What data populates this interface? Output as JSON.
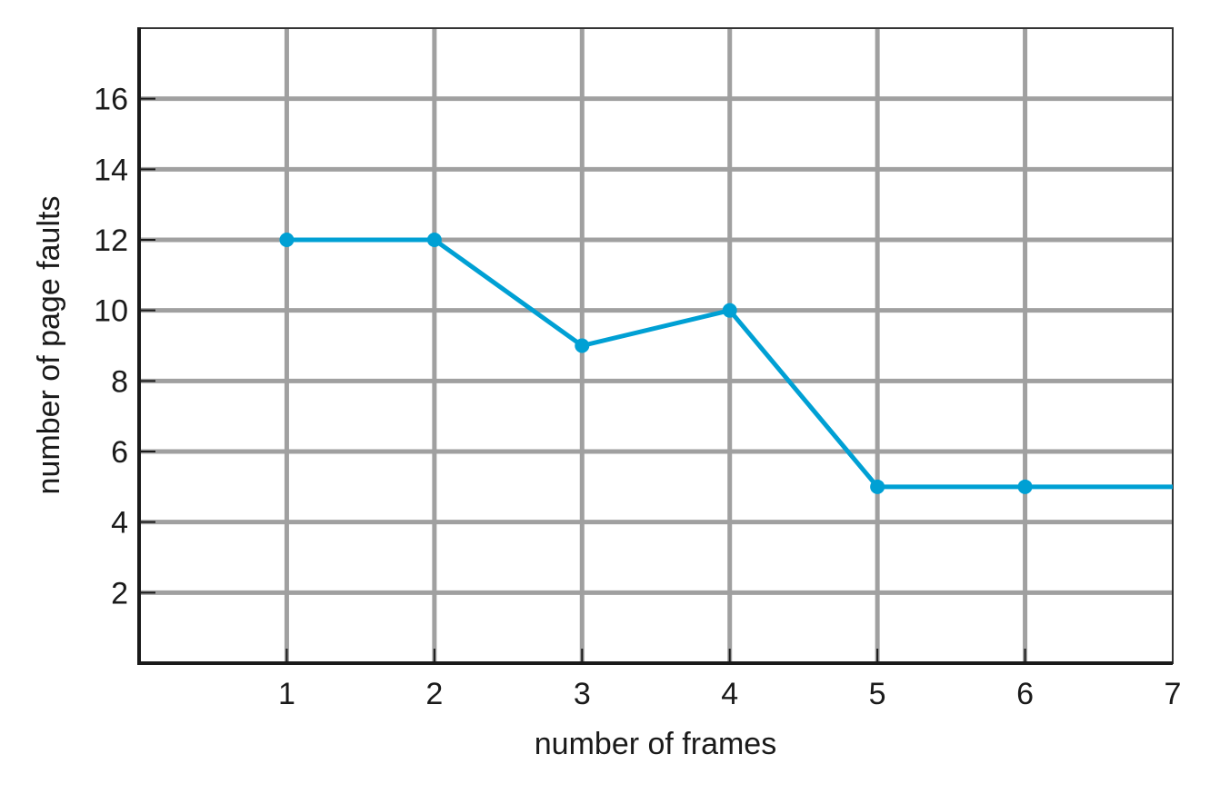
{
  "chart_data": {
    "type": "line",
    "title": "",
    "xlabel": "number of frames",
    "ylabel": "number of page faults",
    "xlim": [
      0,
      7
    ],
    "ylim": [
      0,
      18
    ],
    "x_ticks": [
      1,
      2,
      3,
      4,
      5,
      6,
      7
    ],
    "y_ticks": [
      2,
      4,
      6,
      8,
      10,
      12,
      14,
      16
    ],
    "grid": true,
    "series": [
      {
        "x": [
          1,
          2,
          3,
          4,
          5,
          6,
          7
        ],
        "y": [
          12,
          12,
          9,
          10,
          5,
          5,
          5
        ],
        "markers": [
          true,
          true,
          true,
          true,
          true,
          true,
          false
        ],
        "color": "#00a0d4"
      }
    ],
    "grid_color": "#a0a0a0",
    "axis_color": "#1a1a1a"
  }
}
